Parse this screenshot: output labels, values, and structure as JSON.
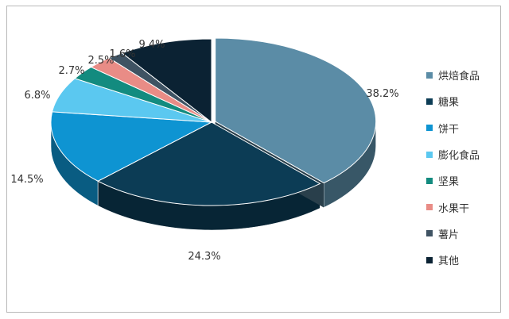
{
  "chart_data": {
    "type": "pie",
    "style": "3d-exploded",
    "title": "",
    "legend_position": "right",
    "series": [
      {
        "name": "烘焙食品",
        "value": 38.2,
        "label": "38.2%",
        "color": "#5b8ca6"
      },
      {
        "name": "糖果",
        "value": 24.3,
        "label": "24.3%",
        "color": "#0c3c55"
      },
      {
        "name": "饼干",
        "value": 14.5,
        "label": "14.5%",
        "color": "#0e94d2"
      },
      {
        "name": "膨化食品",
        "value": 6.8,
        "label": "6.8%",
        "color": "#5bc8f0"
      },
      {
        "name": "坚果",
        "value": 2.7,
        "label": "2.7%",
        "color": "#138b7f"
      },
      {
        "name": "水果干",
        "value": 2.5,
        "label": "2.5%",
        "color": "#e98c86"
      },
      {
        "name": "薯片",
        "value": 1.6,
        "label": "1.6%",
        "color": "#3f5363"
      },
      {
        "name": "其他",
        "value": 9.4,
        "label": "9.4%",
        "color": "#0b2233"
      }
    ]
  }
}
